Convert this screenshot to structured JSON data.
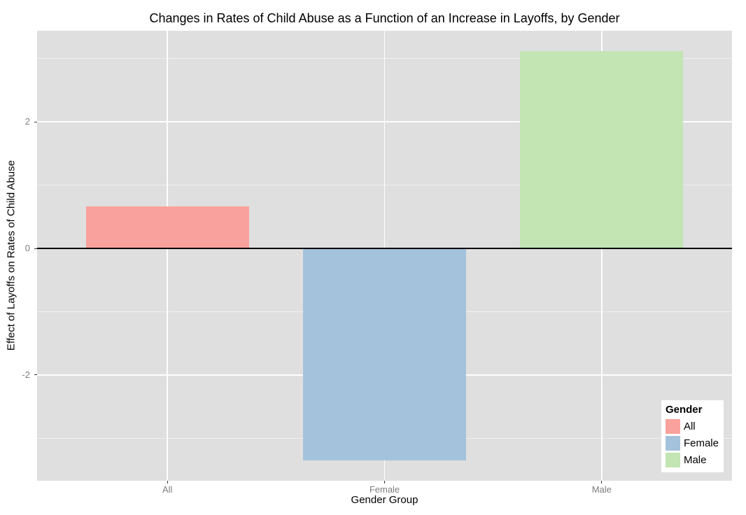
{
  "chart_data": {
    "type": "bar",
    "title": "Changes in Rates of Child Abuse as a Function of an Increase in Layoffs, by Gender",
    "xlabel": "Gender Group",
    "ylabel": "Effect of Layoffs on Rates of Child Abuse",
    "categories": [
      "All",
      "Female",
      "Male"
    ],
    "values": [
      0.67,
      -3.35,
      3.12
    ],
    "bar_colors": [
      "#F9A19C",
      "#A5C2DC",
      "#C2E5B3"
    ],
    "ylim": [
      -3.67,
      3.44
    ],
    "y_major_ticks": [
      2,
      0,
      -2
    ],
    "y_minor_ticks": [
      3,
      1,
      -1,
      -3
    ],
    "zero_line": 0,
    "grid": true,
    "legend": {
      "title": "Gender",
      "entries": [
        "All",
        "Female",
        "Male"
      ],
      "position": "bottom-right-inside"
    }
  },
  "style": {
    "panel_bg": "#dfdfdf",
    "tick_label_color": "#7e7e7e",
    "tick_mark_color": "#333333",
    "zero_line_color": "#000000",
    "legend_bg": "#ffffff"
  }
}
